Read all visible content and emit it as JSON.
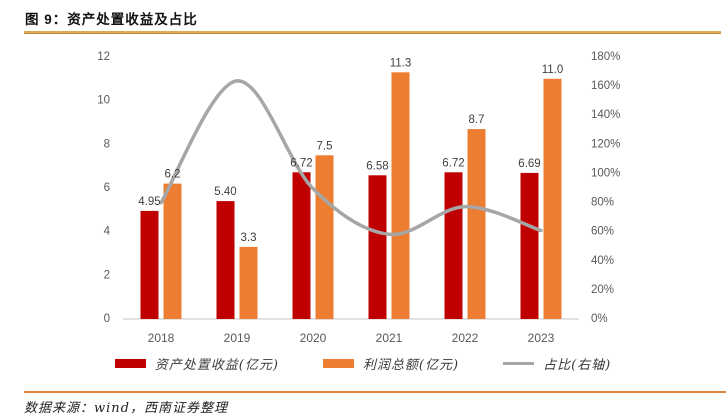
{
  "header": {
    "title": "图 9：资产处置收益及占比"
  },
  "footer": {
    "source": "数据来源：wind，西南证券整理"
  },
  "colors": {
    "bar_red": "#c00000",
    "bar_orange": "#ed7d31",
    "line_gray": "#a6a6a6",
    "rule_top": "#dcaa5b",
    "rule_bottom": "#e0853a",
    "axis_text": "#595959",
    "data_label_text": "#404040",
    "baseline": "#d9d9d9"
  },
  "chart_data": {
    "type": "bar",
    "subtype": "grouped-bars-with-smooth-line",
    "title": "资产处置收益及占比",
    "categories": [
      "2018",
      "2019",
      "2020",
      "2021",
      "2022",
      "2023"
    ],
    "series": [
      {
        "name": "资产处置收益(亿元)",
        "type": "bar",
        "axis": "left",
        "color": "#c00000",
        "values": [
          4.95,
          5.4,
          6.72,
          6.58,
          6.72,
          6.69
        ],
        "labels": [
          "4.95",
          "5.40",
          "6.72",
          "6.58",
          "6.72",
          "6.69"
        ]
      },
      {
        "name": "利润总额(亿元)",
        "type": "bar",
        "axis": "left",
        "color": "#ed7d31",
        "values": [
          6.2,
          3.3,
          7.5,
          11.3,
          8.7,
          11.0
        ],
        "labels": [
          "6.2",
          "3.3",
          "7.5",
          "11.3",
          "8.7",
          "11.0"
        ]
      },
      {
        "name": "占比(右轴)",
        "type": "line",
        "axis": "right",
        "color": "#a6a6a6",
        "values_pct": [
          79.8,
          163.6,
          89.6,
          58.2,
          77.2,
          60.8
        ]
      }
    ],
    "left_axis": {
      "min": 0,
      "max": 12,
      "step": 2,
      "ticks": [
        "0",
        "2",
        "4",
        "6",
        "8",
        "10",
        "12"
      ]
    },
    "right_axis": {
      "min": 0,
      "max": 180,
      "step": 20,
      "ticks": [
        "0%",
        "20%",
        "40%",
        "60%",
        "80%",
        "100%",
        "120%",
        "140%",
        "160%",
        "180%"
      ]
    },
    "grid": false,
    "legend_position": "bottom"
  },
  "legend": {
    "items": [
      {
        "label": "资产处置收益(亿元)",
        "color": "#c00000",
        "kind": "bar"
      },
      {
        "label": "利润总额(亿元)",
        "color": "#ed7d31",
        "kind": "bar"
      },
      {
        "label": "占比(右轴)",
        "color": "#a6a6a6",
        "kind": "line"
      }
    ]
  }
}
